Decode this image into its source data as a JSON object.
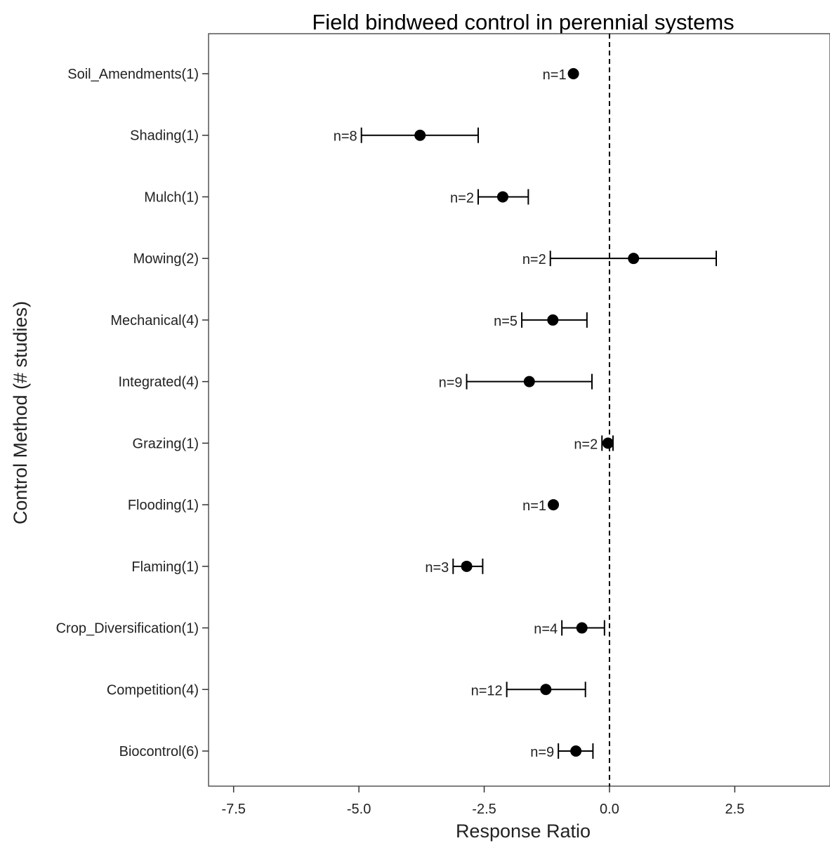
{
  "chart_data": {
    "type": "scatter",
    "subtype": "forest-plot-with-error-bars",
    "title": "Field bindweed control in perennial systems",
    "xlabel": "Response Ratio",
    "ylabel": "Control Method (# studies)",
    "xlim": [
      -8.0,
      4.4
    ],
    "x_ticks": [
      -7.5,
      -5.0,
      -2.5,
      0.0,
      2.5
    ],
    "x_tick_labels": [
      "-7.5",
      "-5.0",
      "-2.5",
      "0.0",
      "2.5"
    ],
    "reference_line": {
      "x": 0.0,
      "style": "dashed"
    },
    "grid": false,
    "legend": "none",
    "categories": [
      "Soil_Amendments(1)",
      "Shading(1)",
      "Mulch(1)",
      "Mowing(2)",
      "Mechanical(4)",
      "Integrated(4)",
      "Grazing(1)",
      "Flooding(1)",
      "Flaming(1)",
      "Crop_Diversification(1)",
      "Competition(4)",
      "Biocontrol(6)"
    ],
    "points": [
      {
        "category": "Soil_Amendments(1)",
        "estimate": -0.72,
        "lower": null,
        "upper": null,
        "n_label": "n=1"
      },
      {
        "category": "Shading(1)",
        "estimate": -3.78,
        "lower": -4.95,
        "upper": -2.62,
        "n_label": "n=8"
      },
      {
        "category": "Mulch(1)",
        "estimate": -2.13,
        "lower": -2.62,
        "upper": -1.62,
        "n_label": "n=2"
      },
      {
        "category": "Mowing(2)",
        "estimate": 0.48,
        "lower": -1.18,
        "upper": 2.13,
        "n_label": "n=2"
      },
      {
        "category": "Mechanical(4)",
        "estimate": -1.13,
        "lower": -1.75,
        "upper": -0.45,
        "n_label": "n=5"
      },
      {
        "category": "Integrated(4)",
        "estimate": -1.6,
        "lower": -2.85,
        "upper": -0.35,
        "n_label": "n=9"
      },
      {
        "category": "Grazing(1)",
        "estimate": -0.03,
        "lower": -0.15,
        "upper": 0.07,
        "n_label": "n=2"
      },
      {
        "category": "Flooding(1)",
        "estimate": -1.12,
        "lower": null,
        "upper": null,
        "n_label": "n=1"
      },
      {
        "category": "Flaming(1)",
        "estimate": -2.85,
        "lower": -3.12,
        "upper": -2.53,
        "n_label": "n=3"
      },
      {
        "category": "Crop_Diversification(1)",
        "estimate": -0.55,
        "lower": -0.95,
        "upper": -0.1,
        "n_label": "n=4"
      },
      {
        "category": "Competition(4)",
        "estimate": -1.27,
        "lower": -2.05,
        "upper": -0.48,
        "n_label": "n=12"
      },
      {
        "category": "Biocontrol(6)",
        "estimate": -0.67,
        "lower": -1.02,
        "upper": -0.33,
        "n_label": "n=9"
      }
    ],
    "marker_color": "#000000",
    "line_color": "#000000",
    "frame_color": "#555555"
  }
}
